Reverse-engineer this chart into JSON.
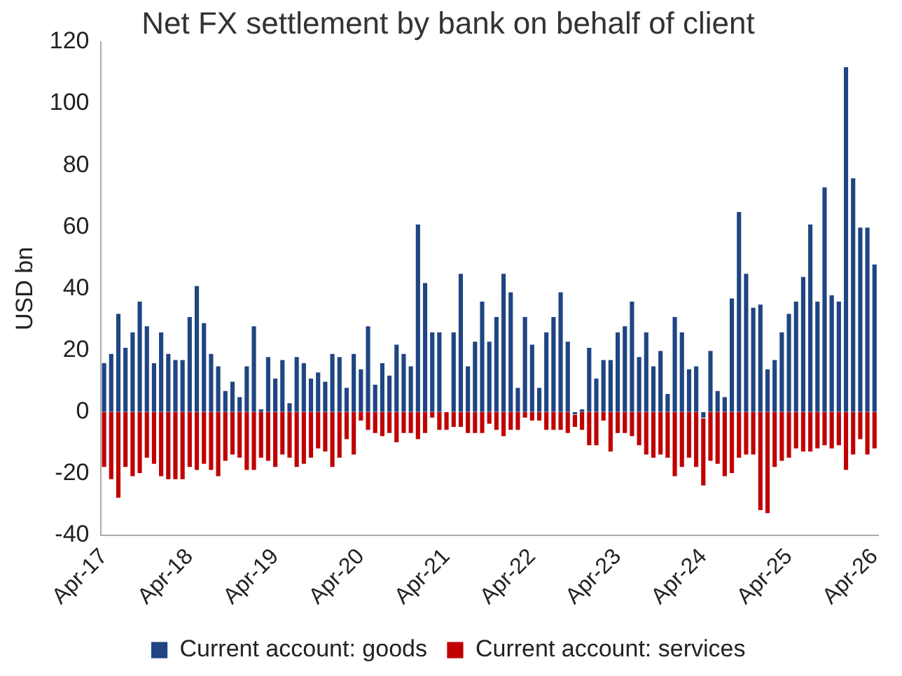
{
  "chart_data": {
    "type": "bar",
    "stacked": true,
    "title": "Net FX settlement by bank on behalf of client",
    "ylabel": "USD bn",
    "categories": [
      "Apr-17",
      null,
      null,
      null,
      null,
      null,
      null,
      null,
      null,
      null,
      null,
      null,
      "Apr-18",
      null,
      null,
      null,
      null,
      null,
      null,
      null,
      null,
      null,
      null,
      null,
      "Apr-19",
      null,
      null,
      null,
      null,
      null,
      null,
      null,
      null,
      null,
      null,
      null,
      "Apr-20",
      null,
      null,
      null,
      null,
      null,
      null,
      null,
      null,
      null,
      null,
      null,
      "Apr-21",
      null,
      null,
      null,
      null,
      null,
      null,
      null,
      null,
      null,
      null,
      null,
      "Apr-22",
      null,
      null,
      null,
      null,
      null,
      null,
      null,
      null,
      null,
      null,
      null,
      "Apr-23",
      null,
      null,
      null,
      null,
      null,
      null,
      null,
      null,
      null,
      null,
      null,
      "Apr-24",
      null,
      null,
      null,
      null,
      null,
      null,
      null,
      null,
      null,
      null,
      null,
      "Apr-25",
      null,
      null,
      null,
      null,
      null,
      null,
      null,
      null,
      null,
      null,
      null,
      "Apr-26"
    ],
    "series": [
      {
        "name": "Current account: goods",
        "color": "#1f4582",
        "values": [
          16,
          19,
          32,
          21,
          26,
          36,
          28,
          16,
          26,
          19,
          17,
          17,
          31,
          41,
          29,
          19,
          15,
          7,
          10,
          5,
          15,
          28,
          1,
          18,
          11,
          17,
          3,
          18,
          16,
          11,
          13,
          10,
          19,
          18,
          8,
          19,
          14,
          28,
          9,
          16,
          12,
          22,
          19,
          15,
          61,
          42,
          26,
          26,
          0,
          26,
          45,
          15,
          23,
          36,
          23,
          31,
          45,
          39,
          8,
          31,
          22,
          8,
          26,
          31,
          39,
          23,
          -1,
          1,
          21,
          11,
          17,
          17,
          26,
          28,
          36,
          18,
          26,
          15,
          20,
          6,
          31,
          26,
          14,
          15,
          -2,
          20,
          7,
          5,
          37,
          65,
          45,
          34,
          35,
          14,
          17,
          26,
          32,
          36,
          44,
          61,
          36,
          73,
          38,
          36,
          112,
          76,
          60,
          60,
          48
        ]
      },
      {
        "name": "Current account: services",
        "color": "#c00000",
        "values": [
          -18,
          -22,
          -28,
          -18,
          -21,
          -20,
          -15,
          -17,
          -21,
          -22,
          -22,
          -22,
          -18,
          -19,
          -17,
          -19,
          -21,
          -16,
          -14,
          -15,
          -19,
          -19,
          -15,
          -16,
          -18,
          -14,
          -15,
          -18,
          -17,
          -15,
          -12,
          -13,
          -18,
          -15,
          -9,
          -14,
          -3,
          -6,
          -7,
          -8,
          -7,
          -10,
          -7,
          -7,
          -9,
          -7,
          -2,
          -6,
          -6,
          -5,
          -5,
          -7,
          -7,
          -7,
          -4,
          -6,
          -8,
          -6,
          -6,
          -2,
          -3,
          -3,
          -6,
          -6,
          -6,
          -7,
          -4,
          -6,
          -11,
          -11,
          -3,
          -13,
          -7,
          -7,
          -8,
          -11,
          -14,
          -15,
          -14,
          -15,
          -21,
          -18,
          -15,
          -18,
          -22,
          -16,
          -17,
          -21,
          -20,
          -15,
          -14,
          -14,
          -32,
          -33,
          -18,
          -16,
          -15,
          -12,
          -13,
          -13,
          -12,
          -11,
          -12,
          -11,
          -19,
          -14,
          -9,
          -14,
          -12
        ]
      }
    ],
    "ylim": [
      -40,
      120
    ],
    "yticks": [
      -40,
      -20,
      0,
      20,
      40,
      60,
      80,
      100,
      120
    ],
    "grid": false,
    "legend": "bottom"
  }
}
